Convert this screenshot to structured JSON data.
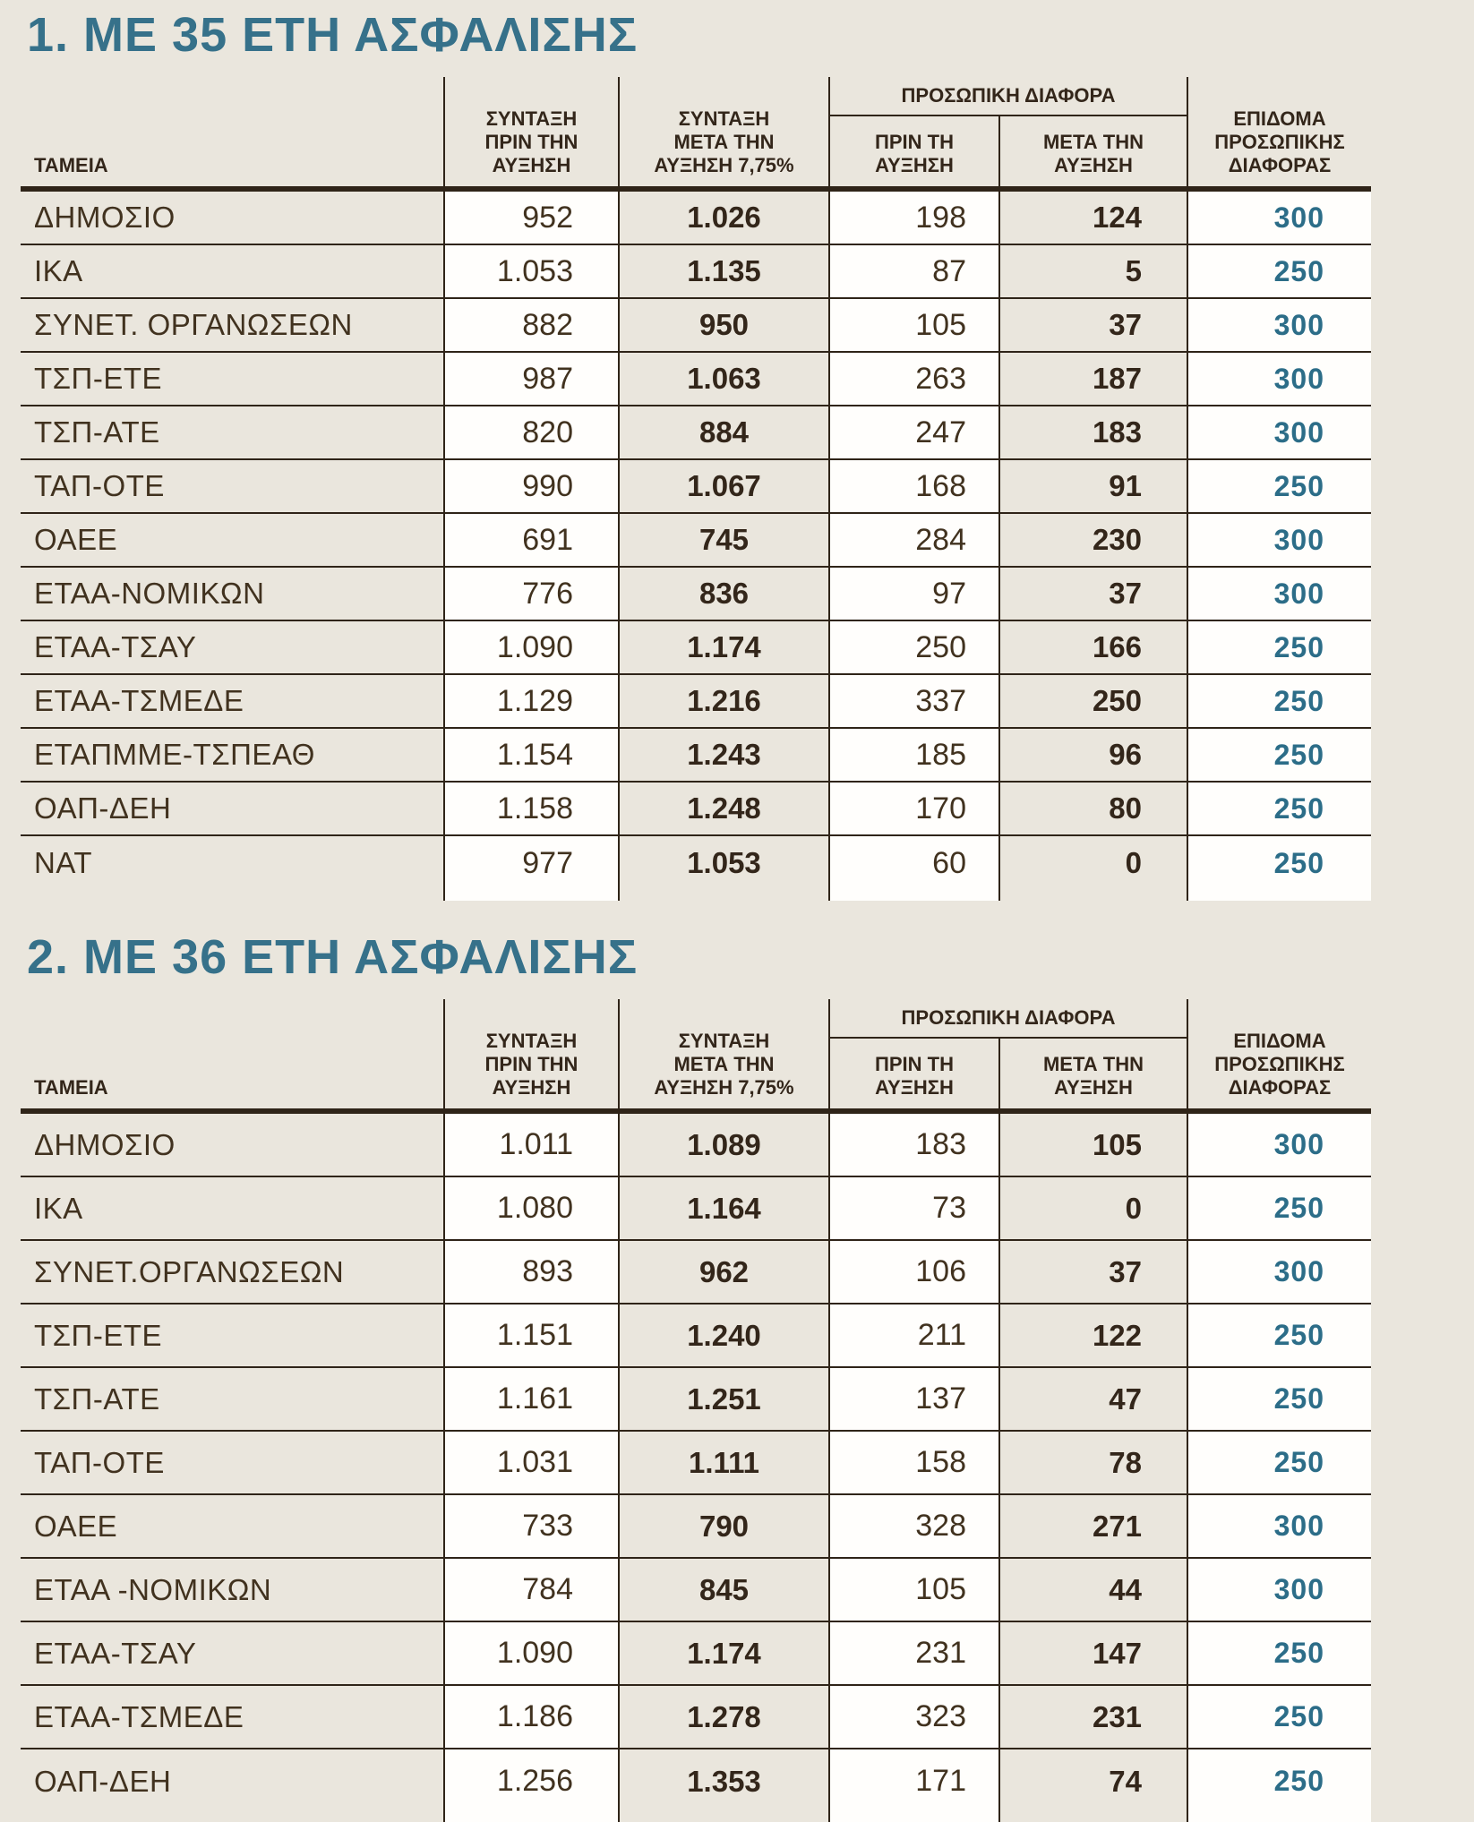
{
  "colors": {
    "background": "#EAE6DD",
    "cell_white": "#FFFEFC",
    "text_dark_brown": "#33261A",
    "text_light_brown": "#41321F",
    "title_teal": "#36718A",
    "benefit_teal": "#2C6D88",
    "rule_brown": "#2F2418"
  },
  "tables": [
    {
      "title": "1. ΜΕ 35 ΕΤΗ ΑΣΦΑΛΙΣΗΣ",
      "header": {
        "funds": "ΤΑΜΕΙΑ",
        "pension_before": "ΣΥΝΤΑΞΗ\nΠΡΙΝ ΤΗΝ\nΑΥΞΗΣΗ",
        "pension_after": "ΣΥΝΤΑΞΗ\nΜΕΤΑ ΤΗΝ\nΑΥΞΗΣΗ 7,75%",
        "personal_diff_group": "ΠΡΟΣΩΠΙΚΗ ΔΙΑΦΟΡΑ",
        "diff_before": "ΠΡΙΝ ΤΗ\nΑΥΞΗΣΗ",
        "diff_after": "ΜΕΤΑ ΤΗΝ\nΑΥΞΗΣΗ",
        "benefit": "ΕΠΙΔΟΜΑ\nΠΡΟΣΩΠΙΚΗΣ\nΔΙΑΦΟΡΑΣ"
      },
      "rows": [
        {
          "fund": "ΔΗΜΟΣΙΟ",
          "pension_before": "952",
          "pension_after": "1.026",
          "diff_before": "198",
          "diff_after": "124",
          "benefit": "300"
        },
        {
          "fund": "ΙΚΑ",
          "pension_before": "1.053",
          "pension_after": "1.135",
          "diff_before": "87",
          "diff_after": "5",
          "benefit": "250"
        },
        {
          "fund": "ΣΥΝΕΤ. ΟΡΓΑΝΩΣΕΩΝ",
          "pension_before": "882",
          "pension_after": "950",
          "diff_before": "105",
          "diff_after": "37",
          "benefit": "300"
        },
        {
          "fund": "ΤΣΠ-ΕΤΕ",
          "pension_before": "987",
          "pension_after": "1.063",
          "diff_before": "263",
          "diff_after": "187",
          "benefit": "300"
        },
        {
          "fund": "ΤΣΠ-ΑΤΕ",
          "pension_before": "820",
          "pension_after": "884",
          "diff_before": "247",
          "diff_after": "183",
          "benefit": "300"
        },
        {
          "fund": "ΤΑΠ-ΟΤΕ",
          "pension_before": "990",
          "pension_after": "1.067",
          "diff_before": "168",
          "diff_after": "91",
          "benefit": "250"
        },
        {
          "fund": "ΟΑΕΕ",
          "pension_before": "691",
          "pension_after": "745",
          "diff_before": "284",
          "diff_after": "230",
          "benefit": "300"
        },
        {
          "fund": "ΕΤΑΑ-ΝΟΜΙΚΩΝ",
          "pension_before": "776",
          "pension_after": "836",
          "diff_before": "97",
          "diff_after": "37",
          "benefit": "300"
        },
        {
          "fund": "ΕΤΑΑ-ΤΣΑΥ",
          "pension_before": "1.090",
          "pension_after": "1.174",
          "diff_before": "250",
          "diff_after": "166",
          "benefit": "250"
        },
        {
          "fund": "ΕΤΑΑ-ΤΣΜΕΔΕ",
          "pension_before": "1.129",
          "pension_after": "1.216",
          "diff_before": "337",
          "diff_after": "250",
          "benefit": "250"
        },
        {
          "fund": "ΕΤΑΠΜΜΕ-ΤΣΠΕΑΘ",
          "pension_before": "1.154",
          "pension_after": "1.243",
          "diff_before": "185",
          "diff_after": "96",
          "benefit": "250"
        },
        {
          "fund": "ΟΑΠ-ΔΕΗ",
          "pension_before": "1.158",
          "pension_after": "1.248",
          "diff_before": "170",
          "diff_after": "80",
          "benefit": "250"
        },
        {
          "fund": "ΝΑΤ",
          "pension_before": "977",
          "pension_after": "1.053",
          "diff_before": "60",
          "diff_after": "0",
          "benefit": "250"
        }
      ]
    },
    {
      "title": "2. ΜΕ 36 ΕΤΗ ΑΣΦΑΛΙΣΗΣ",
      "header": {
        "funds": "ΤΑΜΕΙΑ",
        "pension_before": "ΣΥΝΤΑΞΗ\nΠΡΙΝ ΤΗΝ\nΑΥΞΗΣΗ",
        "pension_after": "ΣΥΝΤΑΞΗ\nΜΕΤΑ ΤΗΝ\nΑΥΞΗΣΗ 7,75%",
        "personal_diff_group": "ΠΡΟΣΩΠΙΚΗ ΔΙΑΦΟΡΑ",
        "diff_before": "ΠΡΙΝ ΤΗ\nΑΥΞΗΣΗ",
        "diff_after": "ΜΕΤΑ ΤΗΝ\nΑΥΞΗΣΗ",
        "benefit": "ΕΠΙΔΟΜΑ\nΠΡΟΣΩΠΙΚΗΣ\nΔΙΑΦΟΡΑΣ"
      },
      "rows": [
        {
          "fund": "ΔΗΜΟΣΙΟ",
          "pension_before": "1.011",
          "pension_after": "1.089",
          "diff_before": "183",
          "diff_after": "105",
          "benefit": "300"
        },
        {
          "fund": "ΙΚΑ",
          "pension_before": "1.080",
          "pension_after": "1.164",
          "diff_before": "73",
          "diff_after": "0",
          "benefit": "250"
        },
        {
          "fund": "ΣΥΝΕΤ.ΟΡΓΑΝΩΣΕΩΝ",
          "pension_before": "893",
          "pension_after": "962",
          "diff_before": "106",
          "diff_after": "37",
          "benefit": "300"
        },
        {
          "fund": "ΤΣΠ-ΕΤΕ",
          "pension_before": "1.151",
          "pension_after": "1.240",
          "diff_before": "211",
          "diff_after": "122",
          "benefit": "250"
        },
        {
          "fund": "ΤΣΠ-ΑΤΕ",
          "pension_before": "1.161",
          "pension_after": "1.251",
          "diff_before": "137",
          "diff_after": "47",
          "benefit": "250"
        },
        {
          "fund": "ΤΑΠ-ΟΤΕ",
          "pension_before": "1.031",
          "pension_after": "1.111",
          "diff_before": "158",
          "diff_after": "78",
          "benefit": "250"
        },
        {
          "fund": "ΟΑΕΕ",
          "pension_before": "733",
          "pension_after": "790",
          "diff_before": "328",
          "diff_after": "271",
          "benefit": "300"
        },
        {
          "fund": "ΕΤΑΑ -ΝΟΜΙΚΩΝ",
          "pension_before": "784",
          "pension_after": "845",
          "diff_before": "105",
          "diff_after": "44",
          "benefit": "300"
        },
        {
          "fund": "ΕΤΑΑ-ΤΣΑΥ",
          "pension_before": "1.090",
          "pension_after": "1.174",
          "diff_before": "231",
          "diff_after": "147",
          "benefit": "250"
        },
        {
          "fund": "ΕΤΑΑ-ΤΣΜΕΔΕ",
          "pension_before": "1.186",
          "pension_after": "1.278",
          "diff_before": "323",
          "diff_after": "231",
          "benefit": "250"
        },
        {
          "fund": "ΟΑΠ-ΔΕΗ",
          "pension_before": "1.256",
          "pension_after": "1.353",
          "diff_before": "171",
          "diff_after": "74",
          "benefit": "250"
        }
      ]
    }
  ]
}
